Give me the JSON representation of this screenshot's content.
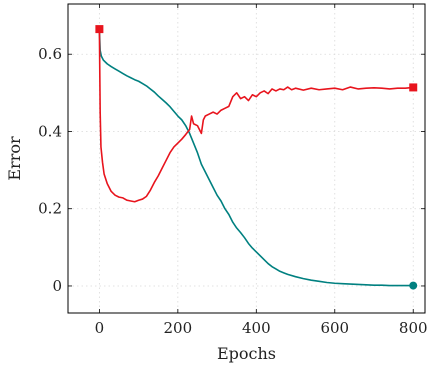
{
  "chart_data": {
    "type": "line",
    "xlabel": "Epochs",
    "ylabel": "Error",
    "xlim": [
      -80,
      830
    ],
    "ylim": [
      -0.07,
      0.73
    ],
    "xticks": [
      0,
      200,
      400,
      600,
      800
    ],
    "yticks": [
      0,
      0.2,
      0.4,
      0.6
    ],
    "xtick_labels": [
      "0",
      "200",
      "400",
      "600",
      "800"
    ],
    "ytick_labels": [
      "0",
      "0.2",
      "0.4",
      "0.6"
    ],
    "grid": true,
    "legend": "none",
    "series": [
      {
        "color": "#008080",
        "end_marker": "circle",
        "points": [
          [
            0,
            0.665
          ],
          [
            2,
            0.61
          ],
          [
            5,
            0.595
          ],
          [
            10,
            0.585
          ],
          [
            20,
            0.575
          ],
          [
            30,
            0.568
          ],
          [
            40,
            0.562
          ],
          [
            50,
            0.556
          ],
          [
            60,
            0.55
          ],
          [
            70,
            0.544
          ],
          [
            80,
            0.539
          ],
          [
            90,
            0.534
          ],
          [
            100,
            0.53
          ],
          [
            110,
            0.524
          ],
          [
            120,
            0.518
          ],
          [
            130,
            0.51
          ],
          [
            140,
            0.502
          ],
          [
            150,
            0.492
          ],
          [
            160,
            0.483
          ],
          [
            170,
            0.474
          ],
          [
            180,
            0.464
          ],
          [
            190,
            0.452
          ],
          [
            200,
            0.44
          ],
          [
            210,
            0.43
          ],
          [
            220,
            0.415
          ],
          [
            230,
            0.395
          ],
          [
            240,
            0.37
          ],
          [
            250,
            0.345
          ],
          [
            260,
            0.315
          ],
          [
            270,
            0.295
          ],
          [
            280,
            0.275
          ],
          [
            290,
            0.255
          ],
          [
            300,
            0.235
          ],
          [
            310,
            0.22
          ],
          [
            320,
            0.2
          ],
          [
            330,
            0.185
          ],
          [
            340,
            0.165
          ],
          [
            350,
            0.15
          ],
          [
            360,
            0.138
          ],
          [
            370,
            0.125
          ],
          [
            380,
            0.11
          ],
          [
            390,
            0.098
          ],
          [
            400,
            0.088
          ],
          [
            410,
            0.078
          ],
          [
            420,
            0.068
          ],
          [
            430,
            0.058
          ],
          [
            440,
            0.05
          ],
          [
            450,
            0.044
          ],
          [
            460,
            0.038
          ],
          [
            470,
            0.034
          ],
          [
            480,
            0.03
          ],
          [
            500,
            0.024
          ],
          [
            520,
            0.019
          ],
          [
            540,
            0.015
          ],
          [
            560,
            0.012
          ],
          [
            580,
            0.009
          ],
          [
            600,
            0.007
          ],
          [
            620,
            0.006
          ],
          [
            640,
            0.005
          ],
          [
            660,
            0.004
          ],
          [
            680,
            0.003
          ],
          [
            700,
            0.002
          ],
          [
            720,
            0.002
          ],
          [
            740,
            0.001
          ],
          [
            760,
            0.001
          ],
          [
            780,
            0.001
          ],
          [
            800,
            0.001
          ]
        ]
      },
      {
        "color": "#e8141d",
        "start_marker": "square",
        "end_marker": "square",
        "points": [
          [
            0,
            0.665
          ],
          [
            2,
            0.45
          ],
          [
            4,
            0.36
          ],
          [
            8,
            0.32
          ],
          [
            12,
            0.29
          ],
          [
            20,
            0.265
          ],
          [
            30,
            0.245
          ],
          [
            40,
            0.235
          ],
          [
            50,
            0.23
          ],
          [
            60,
            0.228
          ],
          [
            70,
            0.222
          ],
          [
            80,
            0.22
          ],
          [
            90,
            0.218
          ],
          [
            100,
            0.222
          ],
          [
            110,
            0.225
          ],
          [
            120,
            0.232
          ],
          [
            130,
            0.248
          ],
          [
            140,
            0.268
          ],
          [
            150,
            0.285
          ],
          [
            160,
            0.305
          ],
          [
            170,
            0.325
          ],
          [
            180,
            0.345
          ],
          [
            190,
            0.36
          ],
          [
            200,
            0.37
          ],
          [
            210,
            0.38
          ],
          [
            220,
            0.392
          ],
          [
            230,
            0.405
          ],
          [
            235,
            0.44
          ],
          [
            240,
            0.42
          ],
          [
            250,
            0.415
          ],
          [
            260,
            0.395
          ],
          [
            265,
            0.43
          ],
          [
            270,
            0.44
          ],
          [
            280,
            0.445
          ],
          [
            290,
            0.45
          ],
          [
            300,
            0.445
          ],
          [
            310,
            0.455
          ],
          [
            320,
            0.46
          ],
          [
            330,
            0.465
          ],
          [
            340,
            0.49
          ],
          [
            350,
            0.5
          ],
          [
            360,
            0.485
          ],
          [
            370,
            0.49
          ],
          [
            380,
            0.48
          ],
          [
            390,
            0.495
          ],
          [
            400,
            0.49
          ],
          [
            410,
            0.5
          ],
          [
            420,
            0.505
          ],
          [
            430,
            0.498
          ],
          [
            440,
            0.51
          ],
          [
            450,
            0.505
          ],
          [
            460,
            0.51
          ],
          [
            470,
            0.508
          ],
          [
            480,
            0.515
          ],
          [
            490,
            0.508
          ],
          [
            500,
            0.512
          ],
          [
            520,
            0.507
          ],
          [
            540,
            0.512
          ],
          [
            560,
            0.508
          ],
          [
            580,
            0.51
          ],
          [
            600,
            0.512
          ],
          [
            620,
            0.508
          ],
          [
            640,
            0.515
          ],
          [
            660,
            0.51
          ],
          [
            680,
            0.512
          ],
          [
            700,
            0.513
          ],
          [
            720,
            0.512
          ],
          [
            740,
            0.51
          ],
          [
            760,
            0.512
          ],
          [
            780,
            0.512
          ],
          [
            800,
            0.514
          ]
        ]
      }
    ]
  }
}
